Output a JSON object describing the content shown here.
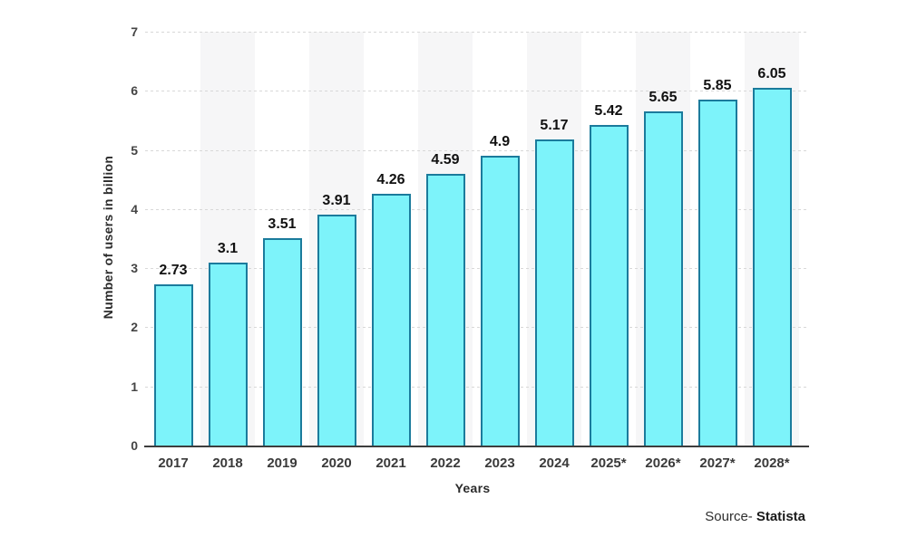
{
  "chart_data": {
    "type": "bar",
    "title": "",
    "categories": [
      "2017",
      "2018",
      "2019",
      "2020",
      "2021",
      "2022",
      "2023",
      "2024",
      "2025*",
      "2026*",
      "2027*",
      "2028*"
    ],
    "values": [
      2.73,
      3.1,
      3.51,
      3.91,
      4.26,
      4.59,
      4.9,
      5.17,
      5.42,
      5.65,
      5.85,
      6.05
    ],
    "value_labels": [
      "2.73",
      "3.1",
      "3.51",
      "3.91",
      "4.26",
      "4.59",
      "4.9",
      "5.17",
      "5.42",
      "5.65",
      "5.85",
      "6.05"
    ],
    "xlabel": "Years",
    "ylabel": "Number of users in billion",
    "ylim": [
      0,
      7
    ],
    "yticks": [
      0,
      1,
      2,
      3,
      4,
      5,
      6,
      7
    ],
    "grid": "horizontal-dashed",
    "legend": "none",
    "bar_fill_color": "#7df3fa",
    "bar_border_color": "#1b7b9c",
    "gridline_color": "#d8d8d8",
    "axis_line_color": "#3d3d3d",
    "alt_column_stripe_color": "#f6f6f7"
  },
  "source": {
    "prefix": "Source-",
    "name": "Statista"
  }
}
